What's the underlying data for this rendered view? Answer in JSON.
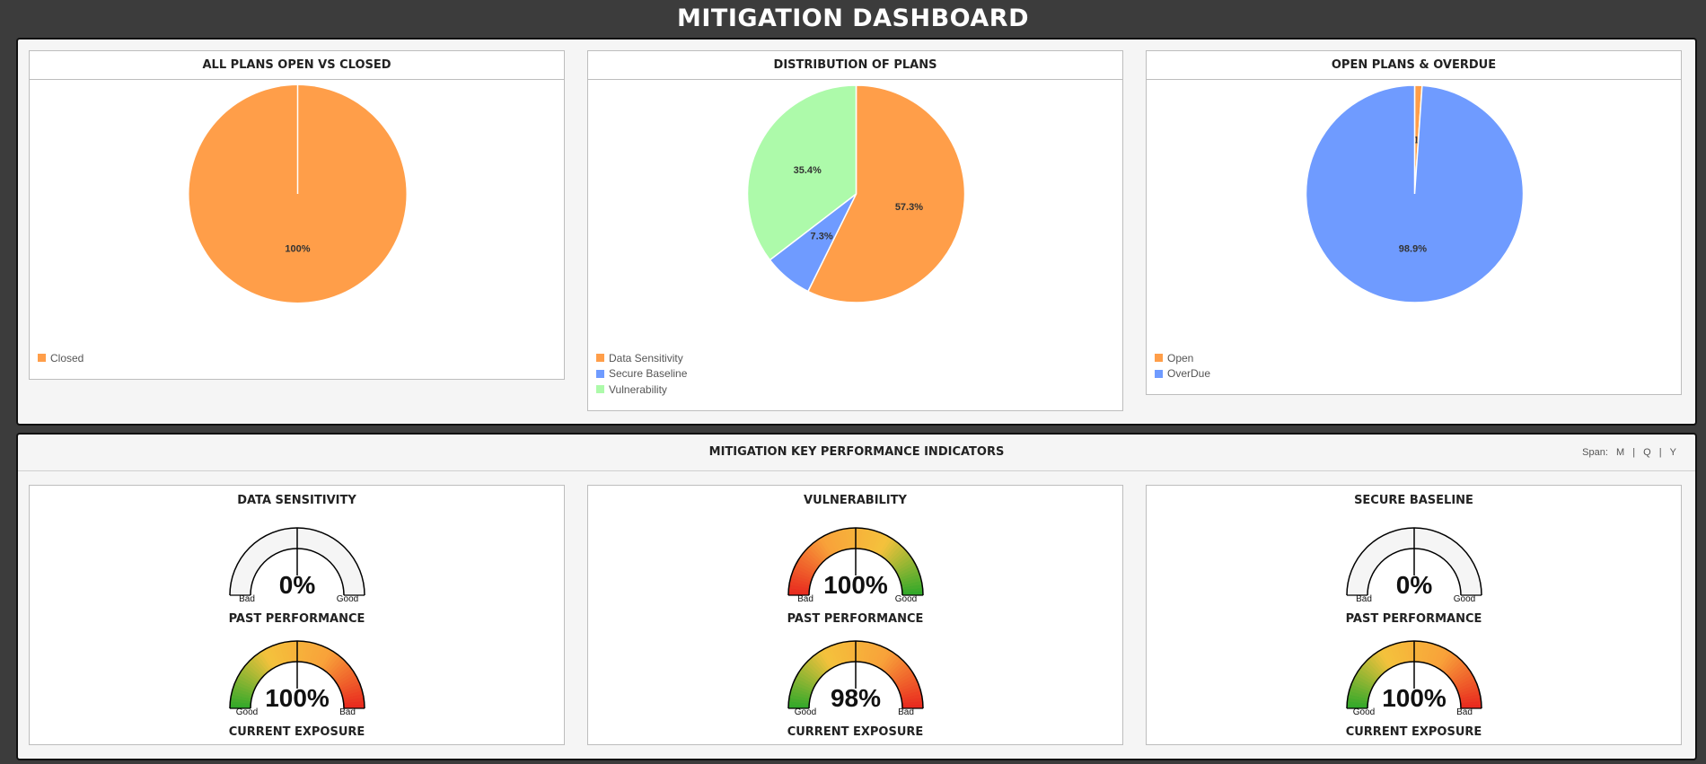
{
  "page": {
    "title": "MITIGATION DASHBOARD"
  },
  "chart_data": [
    {
      "type": "pie",
      "title": "ALL PLANS OPEN VS CLOSED",
      "series": [
        {
          "name": "Closed",
          "value": 100,
          "label": "100%",
          "color": "#ff9e49"
        }
      ]
    },
    {
      "type": "pie",
      "title": "DISTRIBUTION OF PLANS",
      "series": [
        {
          "name": "Data Sensitivity",
          "value": 57.3,
          "label": "57.3%",
          "color": "#ff9e49"
        },
        {
          "name": "Secure Baseline",
          "value": 7.3,
          "label": "7.3%",
          "color": "#6f9bff"
        },
        {
          "name": "Vulnerability",
          "value": 35.4,
          "label": "35.4%",
          "color": "#adfaaa"
        }
      ]
    },
    {
      "type": "pie",
      "title": "OPEN PLANS & OVERDUE",
      "series": [
        {
          "name": "Open",
          "value": 1.1,
          "label": "1.1%",
          "color": "#ff9e49"
        },
        {
          "name": "OverDue",
          "value": 98.9,
          "label": "98.9%",
          "color": "#6f9bff"
        }
      ]
    }
  ],
  "kpi": {
    "title": "MITIGATION KEY PERFORMANCE INDICATORS",
    "span_label": "Span:",
    "span_options": [
      "M",
      "Q",
      "Y"
    ],
    "separator": "|",
    "panels": [
      {
        "title": "DATA SENSITIVITY",
        "past": {
          "value": "0%",
          "label": "PAST PERFORMANCE",
          "left": "Bad",
          "right": "Good",
          "scheme": "blank"
        },
        "current": {
          "value": "100%",
          "label": "CURRENT EXPOSURE",
          "left": "Good",
          "right": "Bad",
          "scheme": "green-red"
        }
      },
      {
        "title": "VULNERABILITY",
        "past": {
          "value": "100%",
          "label": "PAST PERFORMANCE",
          "left": "Bad",
          "right": "Good",
          "scheme": "red-green"
        },
        "current": {
          "value": "98%",
          "label": "CURRENT EXPOSURE",
          "left": "Good",
          "right": "Bad",
          "scheme": "green-red"
        }
      },
      {
        "title": "SECURE BASELINE",
        "past": {
          "value": "0%",
          "label": "PAST PERFORMANCE",
          "left": "Bad",
          "right": "Good",
          "scheme": "blank"
        },
        "current": {
          "value": "100%",
          "label": "CURRENT EXPOSURE",
          "left": "Good",
          "right": "Bad",
          "scheme": "green-red"
        }
      }
    ]
  }
}
